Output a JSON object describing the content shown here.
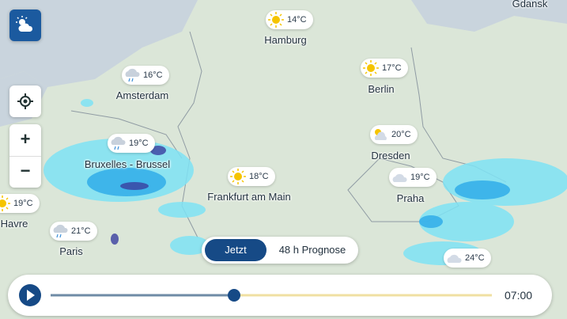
{
  "map": {
    "cities": [
      {
        "label": "Hamburg",
        "temp": "14°C",
        "icon": "sun"
      },
      {
        "label": "Amsterdam",
        "temp": "16°C",
        "icon": "rain"
      },
      {
        "label": "Berlin",
        "temp": "17°C",
        "icon": "sun"
      },
      {
        "label": "Dresden",
        "temp": "20°C",
        "icon": "partly"
      },
      {
        "label": "Bruxelles - Brussel",
        "temp": "19°C",
        "icon": "rain"
      },
      {
        "label": "Frankfurt am Main",
        "temp": "18°C",
        "icon": "sun"
      },
      {
        "label": "Praha",
        "temp": "19°C",
        "icon": "cloud"
      },
      {
        "label": "Havre",
        "temp": "19°C",
        "icon": "sun"
      },
      {
        "label": "Paris",
        "temp": "21°C",
        "icon": "rain"
      },
      {
        "temp": "24°C",
        "icon": "cloud"
      },
      {
        "label": "Gdansk"
      }
    ]
  },
  "controls": {
    "now": "Jetzt",
    "forecast": "48 h Prognose",
    "time": "07:00"
  }
}
